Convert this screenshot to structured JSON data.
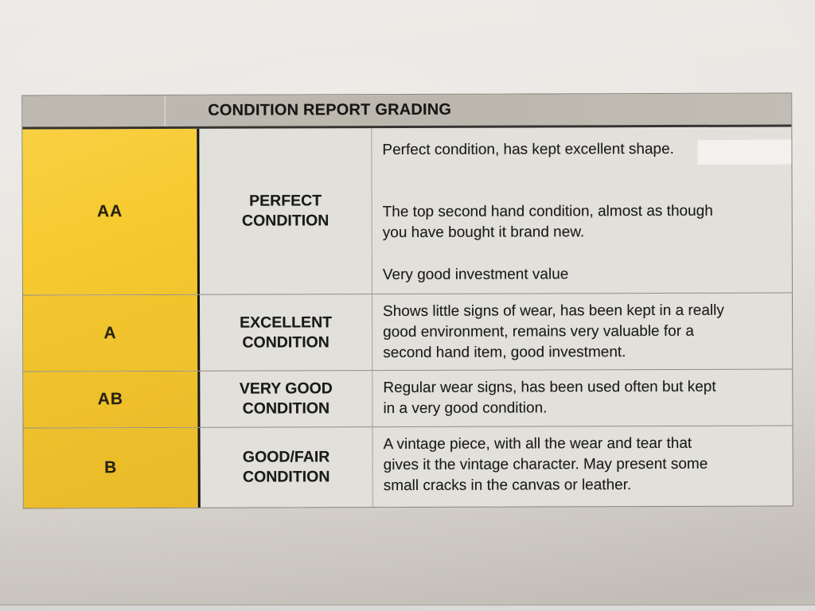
{
  "table": {
    "title": "CONDITION REPORT GRADING",
    "rows": [
      {
        "grade": "AA",
        "label_lines": [
          "PERFECT",
          "CONDITION"
        ],
        "descriptions": [
          "Perfect condition, has kept excellent shape.",
          "The top second hand condition, almost as though you have bought it brand new.",
          "Very good investment value"
        ]
      },
      {
        "grade": "A",
        "label_lines": [
          "EXCELLENT",
          "CONDITION"
        ],
        "descriptions": [
          "Shows little signs of wear, has been kept in a really good environment, remains very valuable for a second hand item, good investment."
        ]
      },
      {
        "grade": "AB",
        "label_lines": [
          "VERY GOOD",
          "CONDITION"
        ],
        "descriptions": [
          "Regular wear signs, has been used often but kept in a very good condition."
        ]
      },
      {
        "grade": "B",
        "label_lines": [
          "GOOD/FAIR",
          "CONDITION"
        ],
        "descriptions": [
          "A vintage piece, with all the wear and tear that gives it the vintage character. May present some small cracks in the canvas or leather."
        ]
      }
    ],
    "colors": {
      "grade_column_yellow": "#f3c52e",
      "header_gray": "#bdb9b0",
      "cell_background": "#e2e0db",
      "heavy_divider_black": "#161612",
      "text": "#1b1b19"
    }
  }
}
